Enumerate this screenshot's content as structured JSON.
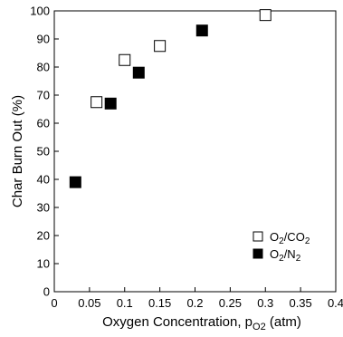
{
  "chart_data": {
    "type": "scatter",
    "xlabel_main": "Oxygen Concentration, p",
    "xlabel_sub": "O2",
    "xlabel_unit": " (atm)",
    "ylabel": "Char Burn Out (%)",
    "xlim": [
      0,
      0.4
    ],
    "ylim": [
      0,
      100
    ],
    "x_ticks": [
      "0",
      "0.05",
      "0.1",
      "0.15",
      "0.2",
      "0.25",
      "0.3",
      "0.35",
      "0.4"
    ],
    "y_ticks": [
      "0",
      "10",
      "20",
      "30",
      "40",
      "50",
      "60",
      "70",
      "80",
      "90",
      "100"
    ],
    "grid": false,
    "legend_position": "bottom-right",
    "series": [
      {
        "name_main": "O",
        "name_sub1": "2",
        "name_mid": "/CO",
        "name_sub2": "2",
        "marker": "open-square",
        "color": "#000000",
        "points": [
          [
            0.06,
            67.5
          ],
          [
            0.1,
            82.5
          ],
          [
            0.15,
            87.5
          ],
          [
            0.3,
            98.5
          ]
        ]
      },
      {
        "name_main": "O",
        "name_sub1": "2",
        "name_mid": "/N",
        "name_sub2": "2",
        "marker": "filled-square",
        "color": "#000000",
        "points": [
          [
            0.03,
            39
          ],
          [
            0.08,
            67
          ],
          [
            0.12,
            78
          ],
          [
            0.21,
            93
          ]
        ]
      }
    ]
  }
}
